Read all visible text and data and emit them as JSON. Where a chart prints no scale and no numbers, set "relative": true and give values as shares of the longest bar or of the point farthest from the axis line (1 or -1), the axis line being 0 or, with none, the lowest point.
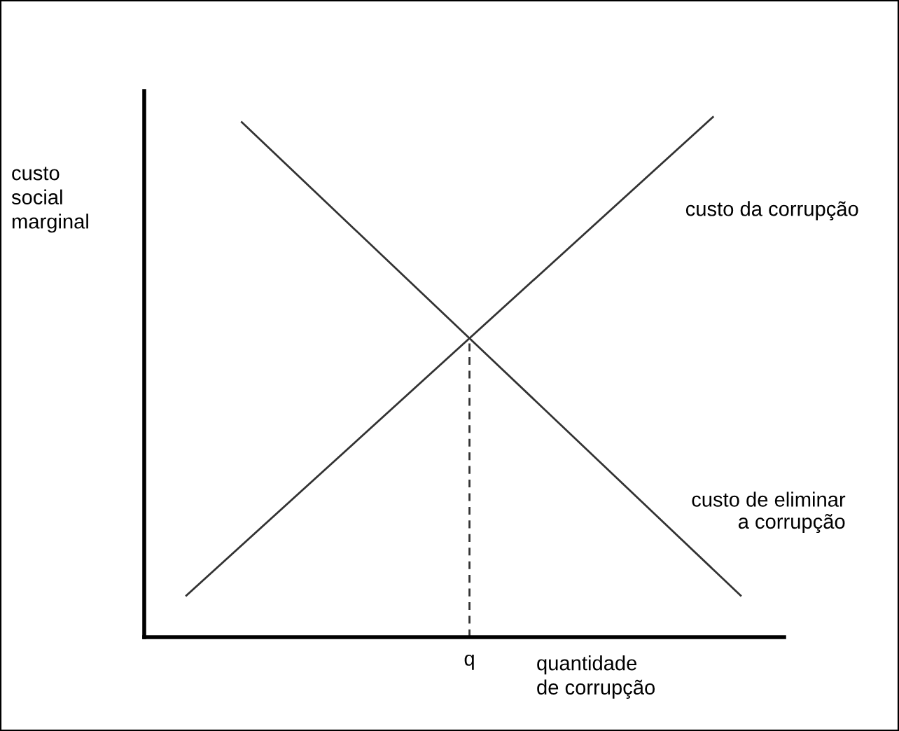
{
  "chart_data": {
    "type": "line",
    "relative": true,
    "ylabel": "custo\nsocial\nmarginal",
    "xlabel": "quantidade\nde corrupção",
    "categories": [
      null,
      null,
      null,
      null,
      null,
      null,
      null,
      null,
      null,
      null,
      null,
      null,
      null,
      null,
      null,
      null,
      null,
      null,
      null,
      null,
      null
    ],
    "grid": false,
    "legend": false,
    "marker": "none",
    "annotations": [
      "q"
    ],
    "series": [
      {
        "name": "custo da corrupção",
        "color": "#333333",
        "values": [
          0.08,
          null,
          null,
          null,
          null,
          null,
          null,
          null,
          null,
          null,
          null,
          null,
          null,
          null,
          null,
          null,
          null,
          null,
          null,
          1.0,
          null
        ]
      },
      {
        "name": "custo de eliminar\na corrupção",
        "color": "#333333",
        "values": [
          null,
          null,
          0.99,
          null,
          null,
          null,
          null,
          null,
          null,
          null,
          null,
          null,
          null,
          null,
          null,
          null,
          null,
          null,
          null,
          null,
          0.08
        ]
      }
    ]
  }
}
